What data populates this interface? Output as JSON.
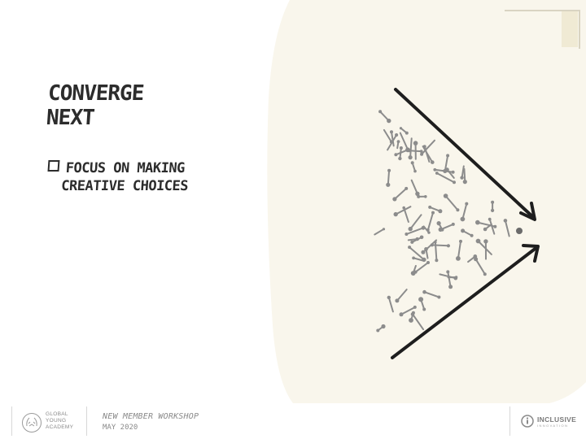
{
  "slide": {
    "title_lines": [
      "CONVERGE",
      "NEXT"
    ],
    "bullet_lines": [
      "FOCUS ON MAKING",
      "CREATIVE CHOICES"
    ]
  },
  "footer": {
    "gya_lines": [
      "GLOBAL",
      "YOUNG",
      "ACADEMY"
    ],
    "workshop": "NEW MEMBER WORKSHOP",
    "date": "MAY 2020",
    "ii_name": "INCLUSIVE",
    "ii_sub": "INNOVATION"
  },
  "colors": {
    "ink": "#2c2c2c",
    "paper": "#f9f6ec",
    "dots": "#8c8c8c",
    "footer_text": "#8a8a8a"
  },
  "icons": {
    "bullet": "checkbox-square-icon",
    "gya_logo": "wreath-seal-icon",
    "ii_logo": "circle-i-icon"
  }
}
